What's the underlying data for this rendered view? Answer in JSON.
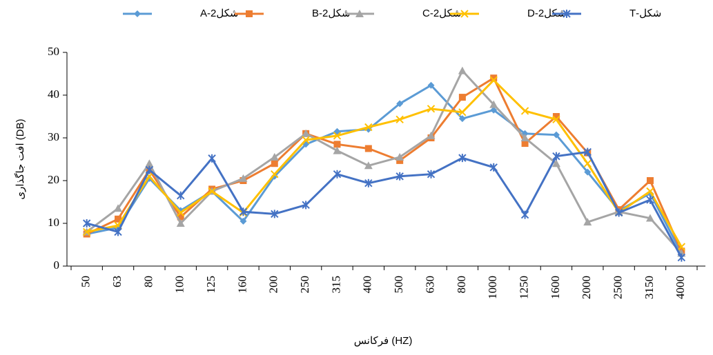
{
  "chart_data": {
    "type": "line",
    "x_label": "فرکانس (HZ)",
    "y_label": "افت جاگذاری (DB)",
    "categories": [
      "50",
      "63",
      "80",
      "100",
      "125",
      "160",
      "200",
      "250",
      "315",
      "400",
      "500",
      "630",
      "800",
      "1000",
      "1250",
      "1600",
      "2000",
      "2500",
      "3150",
      "4000"
    ],
    "ylim": [
      0,
      50
    ],
    "yticks": [
      0,
      10,
      20,
      30,
      40,
      50
    ],
    "grid": false,
    "legend": "top",
    "series": [
      {
        "name": "شکلA-2",
        "color": "#5B9BD5",
        "marker": "diamond",
        "values": [
          7.5,
          9,
          20.5,
          13,
          17.5,
          10.5,
          21,
          28.5,
          31.5,
          32,
          38,
          42.3,
          34.5,
          36.5,
          31,
          30.7,
          22,
          13,
          17,
          3
        ]
      },
      {
        "name": "شکلB-2",
        "color": "#ED7D31",
        "marker": "square",
        "values": [
          7.5,
          11,
          22.5,
          11.5,
          18,
          20,
          24,
          31,
          28.5,
          27.5,
          24.7,
          30,
          39.5,
          44,
          28.7,
          35,
          26.5,
          13.2,
          20,
          3.5
        ]
      },
      {
        "name": "شکلC-2",
        "color": "#A5A5A5",
        "marker": "triangle",
        "values": [
          8,
          13.5,
          24,
          10,
          17.5,
          20.5,
          25.5,
          31,
          27,
          23.5,
          25.5,
          30.5,
          45.7,
          37.8,
          30,
          24,
          10.3,
          12.7,
          11.2,
          3
        ]
      },
      {
        "name": "شکلD-2",
        "color": "#FFC000",
        "marker": "x",
        "values": [
          8,
          9.5,
          21,
          12.5,
          17.5,
          12.5,
          21.5,
          29.5,
          30.5,
          32.5,
          34.3,
          36.8,
          36,
          43.5,
          36.3,
          34.3,
          24,
          12.5,
          17.5,
          4.5
        ]
      },
      {
        "name": "شکل-T",
        "color": "#4472C4",
        "marker": "star",
        "values": [
          10,
          8,
          22.5,
          16.5,
          25.2,
          12.7,
          12.2,
          14.3,
          21.5,
          19.4,
          21,
          21.5,
          25.3,
          23.1,
          12,
          25.7,
          26.7,
          12.5,
          15.5,
          2
        ]
      }
    ]
  }
}
